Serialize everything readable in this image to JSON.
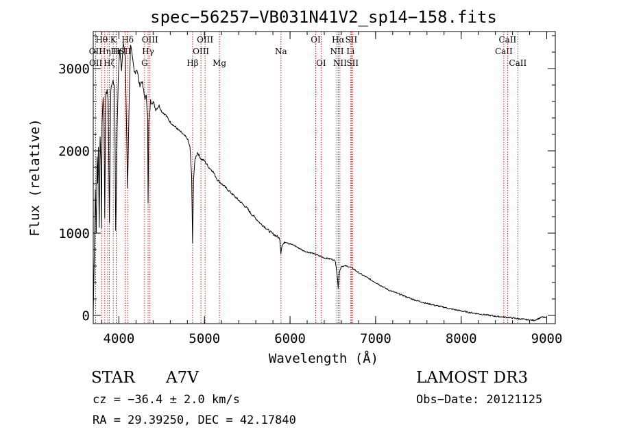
{
  "chart_data": {
    "type": "line",
    "title": "spec−56257−VB031N41V2_sp14−158.fits",
    "xlabel": "Wavelength (Å)",
    "ylabel": "Flux (relative)",
    "xlim": [
      3700,
      9100
    ],
    "ylim": [
      -100,
      3450
    ],
    "x_ticks": [
      4000,
      5000,
      6000,
      7000,
      8000,
      9000
    ],
    "y_ticks": [
      0,
      1000,
      2000,
      3000
    ],
    "grid": false,
    "line_color": "#000000",
    "marker_color": "#cc0000",
    "series": [
      {
        "name": "flux",
        "points": [
          [
            3700,
            0
          ],
          [
            3712,
            700
          ],
          [
            3725,
            1550
          ],
          [
            3735,
            1000
          ],
          [
            3745,
            1900
          ],
          [
            3752,
            1600
          ],
          [
            3760,
            2050
          ],
          [
            3770,
            1050
          ],
          [
            3780,
            2200
          ],
          [
            3790,
            1900
          ],
          [
            3797,
            1050
          ],
          [
            3803,
            2350
          ],
          [
            3815,
            2650
          ],
          [
            3825,
            2500
          ],
          [
            3835,
            1150
          ],
          [
            3845,
            2650
          ],
          [
            3862,
            2750
          ],
          [
            3875,
            2600
          ],
          [
            3889,
            1150
          ],
          [
            3905,
            2750
          ],
          [
            3925,
            2850
          ],
          [
            3950,
            2800
          ],
          [
            3962,
            1050
          ],
          [
            3969,
            1400
          ],
          [
            3980,
            2300
          ],
          [
            3993,
            2900
          ],
          [
            4010,
            3250
          ],
          [
            4030,
            3000
          ],
          [
            4050,
            3300
          ],
          [
            4075,
            3150
          ],
          [
            4090,
            2200
          ],
          [
            4102,
            1550
          ],
          [
            4115,
            2350
          ],
          [
            4135,
            3300
          ],
          [
            4160,
            3100
          ],
          [
            4180,
            2950
          ],
          [
            4210,
            3000
          ],
          [
            4240,
            2800
          ],
          [
            4270,
            2850
          ],
          [
            4300,
            2650
          ],
          [
            4320,
            2650
          ],
          [
            4335,
            2450
          ],
          [
            4341,
            1350
          ],
          [
            4350,
            2350
          ],
          [
            4370,
            2600
          ],
          [
            4400,
            2600
          ],
          [
            4430,
            2500
          ],
          [
            4470,
            2550
          ],
          [
            4500,
            2480
          ],
          [
            4550,
            2430
          ],
          [
            4600,
            2350
          ],
          [
            4650,
            2300
          ],
          [
            4700,
            2250
          ],
          [
            4750,
            2200
          ],
          [
            4800,
            2150
          ],
          [
            4830,
            2050
          ],
          [
            4850,
            1700
          ],
          [
            4861,
            870
          ],
          [
            4872,
            1650
          ],
          [
            4890,
            1900
          ],
          [
            4920,
            1980
          ],
          [
            4960,
            1900
          ],
          [
            5000,
            1880
          ],
          [
            5050,
            1800
          ],
          [
            5100,
            1750
          ],
          [
            5150,
            1650
          ],
          [
            5200,
            1600
          ],
          [
            5250,
            1550
          ],
          [
            5300,
            1500
          ],
          [
            5350,
            1450
          ],
          [
            5400,
            1400
          ],
          [
            5450,
            1350
          ],
          [
            5500,
            1300
          ],
          [
            5550,
            1230
          ],
          [
            5600,
            1180
          ],
          [
            5650,
            1120
          ],
          [
            5700,
            1080
          ],
          [
            5750,
            1030
          ],
          [
            5800,
            990
          ],
          [
            5850,
            960
          ],
          [
            5880,
            930
          ],
          [
            5893,
            760
          ],
          [
            5905,
            850
          ],
          [
            5950,
            900
          ],
          [
            6000,
            870
          ],
          [
            6050,
            850
          ],
          [
            6100,
            820
          ],
          [
            6150,
            790
          ],
          [
            6200,
            770
          ],
          [
            6250,
            760
          ],
          [
            6300,
            740
          ],
          [
            6350,
            720
          ],
          [
            6400,
            700
          ],
          [
            6450,
            690
          ],
          [
            6500,
            680
          ],
          [
            6530,
            660
          ],
          [
            6550,
            500
          ],
          [
            6563,
            340
          ],
          [
            6575,
            520
          ],
          [
            6600,
            600
          ],
          [
            6650,
            600
          ],
          [
            6700,
            590
          ],
          [
            6750,
            560
          ],
          [
            6800,
            520
          ],
          [
            6850,
            490
          ],
          [
            6900,
            460
          ],
          [
            6950,
            430
          ],
          [
            7000,
            400
          ],
          [
            7050,
            370
          ],
          [
            7100,
            340
          ],
          [
            7150,
            310
          ],
          [
            7200,
            290
          ],
          [
            7250,
            270
          ],
          [
            7300,
            250
          ],
          [
            7350,
            230
          ],
          [
            7400,
            210
          ],
          [
            7450,
            190
          ],
          [
            7500,
            175
          ],
          [
            7550,
            160
          ],
          [
            7600,
            145
          ],
          [
            7650,
            135
          ],
          [
            7700,
            120
          ],
          [
            7750,
            110
          ],
          [
            7800,
            100
          ],
          [
            7850,
            85
          ],
          [
            7900,
            75
          ],
          [
            7950,
            65
          ],
          [
            8000,
            55
          ],
          [
            8100,
            35
          ],
          [
            8200,
            20
          ],
          [
            8300,
            5
          ],
          [
            8400,
            -10
          ],
          [
            8500,
            -20
          ],
          [
            8600,
            -30
          ],
          [
            8700,
            -45
          ],
          [
            8800,
            -55
          ],
          [
            8850,
            -60
          ],
          [
            8900,
            -40
          ],
          [
            8950,
            -20
          ],
          [
            8990,
            -30
          ]
        ]
      }
    ],
    "line_markers": [
      {
        "wave": 3727,
        "label": "OII",
        "row": 2
      },
      {
        "wave": 3729,
        "label": "OII",
        "row": 4
      },
      {
        "wave": 3798,
        "label": "Hθ",
        "row": 1
      },
      {
        "wave": 3835,
        "label": "Hη",
        "row": 3
      },
      {
        "wave": 3869,
        "label": "",
        "row": 4
      },
      {
        "wave": 3889,
        "label": "Hζ",
        "row": 4
      },
      {
        "wave": 3934,
        "label": "K",
        "row": 1
      },
      {
        "wave": 3968,
        "label": "H",
        "row": 3
      },
      {
        "wave": 3970,
        "label": "Hε",
        "row": 3
      },
      {
        "wave": 4072,
        "label": "SII",
        "row": 3
      },
      {
        "wave": 4102,
        "label": "Hδ",
        "row": 1
      },
      {
        "wave": 4300,
        "label": "G",
        "row": 4
      },
      {
        "wave": 4341,
        "label": "Hγ",
        "row": 3
      },
      {
        "wave": 4363,
        "label": "OIII",
        "row": 1
      },
      {
        "wave": 4861,
        "label": "Hβ",
        "row": 4
      },
      {
        "wave": 4959,
        "label": "OIII",
        "row": 3
      },
      {
        "wave": 5007,
        "label": "OIII",
        "row": 1
      },
      {
        "wave": 5175,
        "label": "Mg",
        "row": 4
      },
      {
        "wave": 5894,
        "label": "Na",
        "row": 3
      },
      {
        "wave": 6300,
        "label": "OI",
        "row": 1
      },
      {
        "wave": 6363,
        "label": "OI",
        "row": 4
      },
      {
        "wave": 6548,
        "label": "NII",
        "row": 3
      },
      {
        "wave": 6563,
        "label": "Hα",
        "row": 1
      },
      {
        "wave": 6583,
        "label": "NII",
        "row": 4
      },
      {
        "wave": 6707,
        "label": "Li",
        "row": 3
      },
      {
        "wave": 6716,
        "label": "SII",
        "row": 1
      },
      {
        "wave": 6731,
        "label": "SII",
        "row": 4
      },
      {
        "wave": 8498,
        "label": "CaII",
        "row": 3
      },
      {
        "wave": 8542,
        "label": "CaII",
        "row": 1
      },
      {
        "wave": 8662,
        "label": "CaII",
        "row": 4
      }
    ]
  },
  "info": {
    "object_type": "STAR",
    "subclass": "A7V",
    "cz": "cz = −36.4 ± 2.0 km/s",
    "coords": "RA =  29.39250, DEC =  42.17840",
    "survey": "LAMOST DR3",
    "obs_date": "Obs−Date: 20121125"
  }
}
